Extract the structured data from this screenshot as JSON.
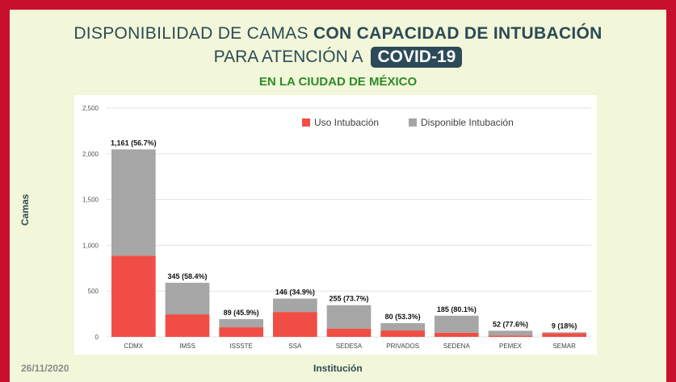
{
  "header": {
    "title_line1_normal": "DISPONIBILIDAD DE CAMAS ",
    "title_line1_bold": "CON CAPACIDAD DE INTUBACIÓN",
    "title_line2_normal": "PARA ATENCIÓN A",
    "title_line2_badge": "COVID-19",
    "subtitle": "EN LA CIUDAD DE MÉXICO"
  },
  "footer": {
    "date": "26/11/2020"
  },
  "colors": {
    "uso": "#f04e45",
    "disponible": "#a6a6a6",
    "frame": "#c8102e",
    "panel": "#f1f7d8",
    "title": "#2c4a57",
    "subtitle": "#2f8a2c"
  },
  "chart_data": {
    "type": "bar",
    "stacked": true,
    "xlabel": "Institución",
    "ylabel": "Camas",
    "ylim": [
      0,
      2500
    ],
    "yticks": [
      "0",
      "500",
      "1,000",
      "1,500",
      "2,000",
      "2,500"
    ],
    "ytick_values": [
      0,
      500,
      1000,
      1500,
      2000,
      2500
    ],
    "grid": true,
    "legend_position": "top-right",
    "categories": [
      "CDMX",
      "IMSS",
      "ISSSTE",
      "SSA",
      "SEDESA",
      "PRIVADOS",
      "SEDENA",
      "PEMEX",
      "SEMAR"
    ],
    "series": [
      {
        "name": "Uso Intubación",
        "values": [
          887,
          246,
          105,
          272,
          91,
          70,
          46,
          15,
          41
        ]
      },
      {
        "name": "Disponible Intubación",
        "values": [
          1161,
          345,
          89,
          146,
          255,
          80,
          185,
          52,
          9
        ]
      }
    ],
    "data_labels": [
      "1,161 (56.7%)",
      "345 (58.4%)",
      "89 (45.9%)",
      "146 (34.9%)",
      "255 (73.7%)",
      "80 (53.3%)",
      "185 (80.1%)",
      "52 (77.6%)",
      "9 (18%)"
    ]
  }
}
